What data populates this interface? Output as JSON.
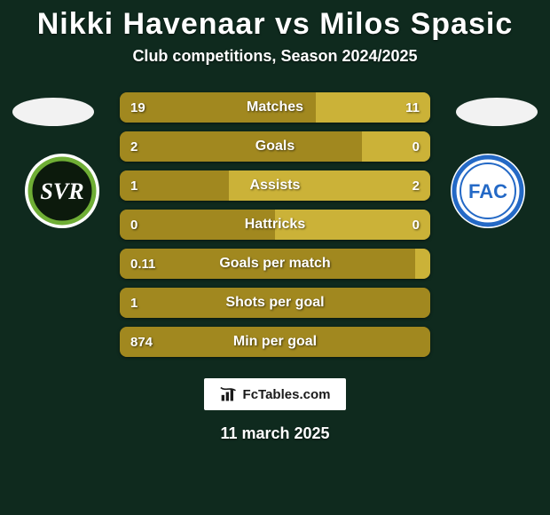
{
  "background_color": "#0f2a1e",
  "title": {
    "text": "Nikki Havenaar vs Milos Spasic",
    "color": "#ffffff",
    "fontsize": 34
  },
  "subtitle": {
    "text": "Club competitions, Season 2024/2025",
    "color": "#ffffff",
    "fontsize": 18
  },
  "player_left": {
    "name": "Nikki Havenaar",
    "club_badge": {
      "outer_bg": "#ffffff",
      "inner_bg": "#0c1a0c",
      "ring": "#6fae35",
      "text": "SVR"
    },
    "bar_color": "#a1881f",
    "country_oval_color": "#f2f2f2"
  },
  "player_right": {
    "name": "Milos Spasic",
    "club_badge": {
      "outer_bg": "#ffffff",
      "inner_bg": "#ffffff",
      "ring": "#2469c6",
      "text": "FAC",
      "text_color": "#2469c6"
    },
    "bar_color": "#cbb238",
    "country_oval_color": "#f2f2f2"
  },
  "stats": [
    {
      "label": "Matches",
      "left_val": "19",
      "right_val": "11",
      "left_pct": 63,
      "right_pct": 37
    },
    {
      "label": "Goals",
      "left_val": "2",
      "right_val": "0",
      "left_pct": 78,
      "right_pct": 22
    },
    {
      "label": "Assists",
      "left_val": "1",
      "right_val": "2",
      "left_pct": 35,
      "right_pct": 65
    },
    {
      "label": "Hattricks",
      "left_val": "0",
      "right_val": "0",
      "left_pct": 50,
      "right_pct": 50
    },
    {
      "label": "Goals per match",
      "left_val": "0.11",
      "right_val": "",
      "left_pct": 95,
      "right_pct": 5
    },
    {
      "label": "Shots per goal",
      "left_val": "1",
      "right_val": "",
      "left_pct": 100,
      "right_pct": 0
    },
    {
      "label": "Min per goal",
      "left_val": "874",
      "right_val": "",
      "left_pct": 100,
      "right_pct": 0
    }
  ],
  "watermark": {
    "text": "FcTables.com",
    "icon": "chart-bar-icon"
  },
  "date": "11 march 2025",
  "bar_track_color": "#4a3e0a",
  "text_color": "#ffffff"
}
